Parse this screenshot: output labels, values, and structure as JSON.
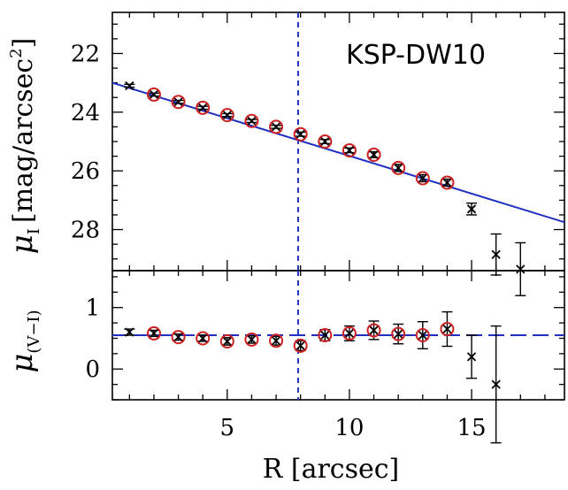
{
  "chart_data": [
    {
      "type": "scatter",
      "panel": "top",
      "annotation": "KSP-DW10",
      "ylabel": "μ_I [mag/arcsec²]",
      "ylabel_main": "μ",
      "ylabel_sub": "I",
      "ylabel_units": "[mag/arcsec",
      "ylabel_sup": "2",
      "ylabel_close": "]",
      "xlim": [
        0.3,
        18.8
      ],
      "ylim": [
        29.4,
        20.6
      ],
      "yticks": [
        22,
        24,
        26,
        28
      ],
      "ytick_labels": [
        "22",
        "24",
        "26",
        "28"
      ],
      "effective_radius_line": 7.9,
      "fit_line": {
        "x": [
          0.3,
          18.8
        ],
        "y": [
          23.0,
          27.75
        ]
      },
      "points": [
        {
          "x": 1,
          "y": 23.1,
          "err": 0.05,
          "circled": false
        },
        {
          "x": 2,
          "y": 23.4,
          "err": 0.05,
          "circled": true
        },
        {
          "x": 3,
          "y": 23.65,
          "err": 0.05,
          "circled": true
        },
        {
          "x": 4,
          "y": 23.85,
          "err": 0.05,
          "circled": true
        },
        {
          "x": 5,
          "y": 24.1,
          "err": 0.05,
          "circled": true
        },
        {
          "x": 6,
          "y": 24.3,
          "err": 0.05,
          "circled": true
        },
        {
          "x": 7,
          "y": 24.5,
          "err": 0.05,
          "circled": true
        },
        {
          "x": 8,
          "y": 24.75,
          "err": 0.07,
          "circled": true
        },
        {
          "x": 9,
          "y": 25.0,
          "err": 0.07,
          "circled": true
        },
        {
          "x": 10,
          "y": 25.3,
          "err": 0.08,
          "circled": true
        },
        {
          "x": 11,
          "y": 25.45,
          "err": 0.1,
          "circled": true
        },
        {
          "x": 12,
          "y": 25.9,
          "err": 0.12,
          "circled": true
        },
        {
          "x": 13,
          "y": 26.25,
          "err": 0.12,
          "circled": true
        },
        {
          "x": 14,
          "y": 26.4,
          "err": 0.12,
          "circled": true
        },
        {
          "x": 15,
          "y": 27.3,
          "err": 0.2,
          "circled": false
        },
        {
          "x": 16,
          "y": 28.85,
          "err": 0.7,
          "circled": false
        },
        {
          "x": 17,
          "y": 29.35,
          "err": 0.9,
          "circled": false
        }
      ]
    },
    {
      "type": "scatter",
      "panel": "bottom",
      "xlabel": "R [arcsec]",
      "ylabel": "μ_(V−I)",
      "ylabel_main": "μ",
      "ylabel_sub": "(V−I)",
      "xlim": [
        0.3,
        18.8
      ],
      "ylim": [
        -0.5,
        1.6
      ],
      "xticks": [
        5,
        10,
        15
      ],
      "xtick_labels": [
        "5",
        "10",
        "15"
      ],
      "yticks": [
        0,
        1
      ],
      "ytick_labels": [
        "0",
        "1"
      ],
      "effective_radius_line": 7.9,
      "mean_color_line": 0.55,
      "points": [
        {
          "x": 1,
          "y": 0.6,
          "err": 0.05,
          "circled": false
        },
        {
          "x": 2,
          "y": 0.58,
          "err": 0.05,
          "circled": true
        },
        {
          "x": 3,
          "y": 0.52,
          "err": 0.05,
          "circled": true
        },
        {
          "x": 4,
          "y": 0.5,
          "err": 0.05,
          "circled": true
        },
        {
          "x": 5,
          "y": 0.45,
          "err": 0.06,
          "circled": true
        },
        {
          "x": 6,
          "y": 0.48,
          "err": 0.06,
          "circled": true
        },
        {
          "x": 7,
          "y": 0.46,
          "err": 0.07,
          "circled": true
        },
        {
          "x": 8,
          "y": 0.38,
          "err": 0.08,
          "circled": true
        },
        {
          "x": 9,
          "y": 0.55,
          "err": 0.09,
          "circled": true
        },
        {
          "x": 10,
          "y": 0.58,
          "err": 0.12,
          "circled": true
        },
        {
          "x": 11,
          "y": 0.63,
          "err": 0.15,
          "circled": true
        },
        {
          "x": 12,
          "y": 0.57,
          "err": 0.16,
          "circled": true
        },
        {
          "x": 13,
          "y": 0.55,
          "err": 0.22,
          "circled": true
        },
        {
          "x": 14,
          "y": 0.65,
          "err": 0.28,
          "circled": true
        },
        {
          "x": 15,
          "y": 0.2,
          "err": 0.35,
          "circled": false
        },
        {
          "x": 16,
          "y": -0.25,
          "err": 0.95,
          "circled": false
        }
      ]
    }
  ]
}
